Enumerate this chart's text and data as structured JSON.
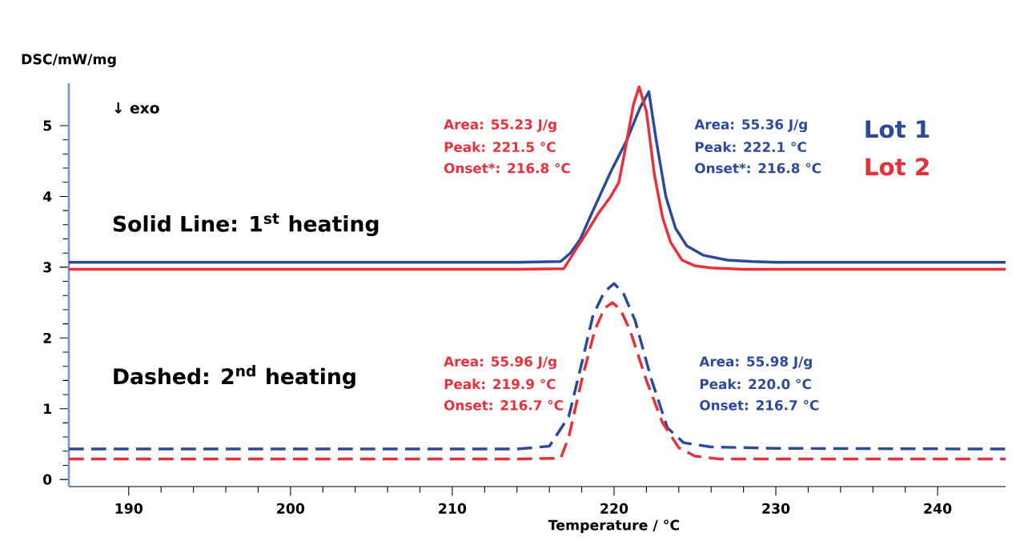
{
  "chart_data": {
    "type": "line",
    "xlabel": "Temperature / °C",
    "ylabel": "DSC/mW/mg",
    "xlim": [
      186.3,
      244.2
    ],
    "ylim": [
      -0.1,
      5.6
    ],
    "xticks": [
      190,
      200,
      210,
      220,
      230,
      240
    ],
    "yticks": [
      0,
      1,
      2,
      3,
      4,
      5
    ],
    "grid": false,
    "marker": "none",
    "series": [
      {
        "name": "Lot 1",
        "color": "#2b4a9b",
        "line_style": "solid",
        "x": [
          186.3,
          214,
          216.7,
          217.3,
          217.9,
          218.5,
          219.8,
          220.8,
          221.6,
          222.15,
          222.6,
          223.2,
          223.8,
          224.5,
          225.5,
          227,
          228.5,
          230,
          244.2
        ],
        "values": [
          3.07,
          3.07,
          3.08,
          3.2,
          3.39,
          3.7,
          4.35,
          4.8,
          5.25,
          5.48,
          4.8,
          4.0,
          3.55,
          3.3,
          3.17,
          3.1,
          3.08,
          3.07,
          3.07
        ]
      },
      {
        "name": "Lot 2",
        "color": "#e8303a",
        "line_style": "solid",
        "x": [
          186.3,
          214,
          216.9,
          217.5,
          218.2,
          219,
          219.8,
          220.3,
          220.8,
          221.2,
          221.55,
          222,
          222.5,
          223,
          223.5,
          224.2,
          225,
          226,
          228,
          244.2
        ],
        "values": [
          2.97,
          2.97,
          2.98,
          3.2,
          3.45,
          3.75,
          4.0,
          4.2,
          4.8,
          5.3,
          5.55,
          5.2,
          4.3,
          3.7,
          3.35,
          3.1,
          3.02,
          2.99,
          2.97,
          2.97
        ]
      },
      {
        "color": "#2b4a9b",
        "line_style": "dashed",
        "x": [
          186.3,
          214,
          216.0,
          217.2,
          218.0,
          218.7,
          219.4,
          220.0,
          220.6,
          221.3,
          222.3,
          223.3,
          224.3,
          226,
          230,
          244.2
        ],
        "values": [
          0.43,
          0.43,
          0.47,
          0.89,
          1.64,
          2.32,
          2.65,
          2.77,
          2.62,
          2.25,
          1.42,
          0.73,
          0.52,
          0.46,
          0.44,
          0.43
        ]
      },
      {
        "color": "#e8303a",
        "line_style": "dashed",
        "x": [
          186.3,
          214,
          216.7,
          217.2,
          218.0,
          218.8,
          219.4,
          219.9,
          220.4,
          221,
          222,
          223,
          224,
          225,
          226.5,
          244.2
        ],
        "values": [
          0.29,
          0.29,
          0.3,
          0.6,
          1.4,
          2.1,
          2.42,
          2.5,
          2.4,
          2.1,
          1.4,
          0.8,
          0.45,
          0.33,
          0.29,
          0.29
        ]
      }
    ],
    "annotations": [
      "↓ exo",
      "Solid Line: 1$^{st}$ heating",
      "Dashed: 2$^{nd}$ heating",
      "Area: 55.23 J/g",
      "Peak: 221.5 °C",
      "Onset*: 216.8 °C",
      "Area: 55.36 J/g",
      "Peak: 222.1 °C",
      "Onset*: 216.8 °C",
      "Area: 55.96 J/g",
      "Peak: 219.9 °C",
      "Onset: 216.7 °C",
      "Area: 55.98 J/g",
      "Peak: 220.0 °C",
      "Onset: 216.7 °C"
    ]
  }
}
